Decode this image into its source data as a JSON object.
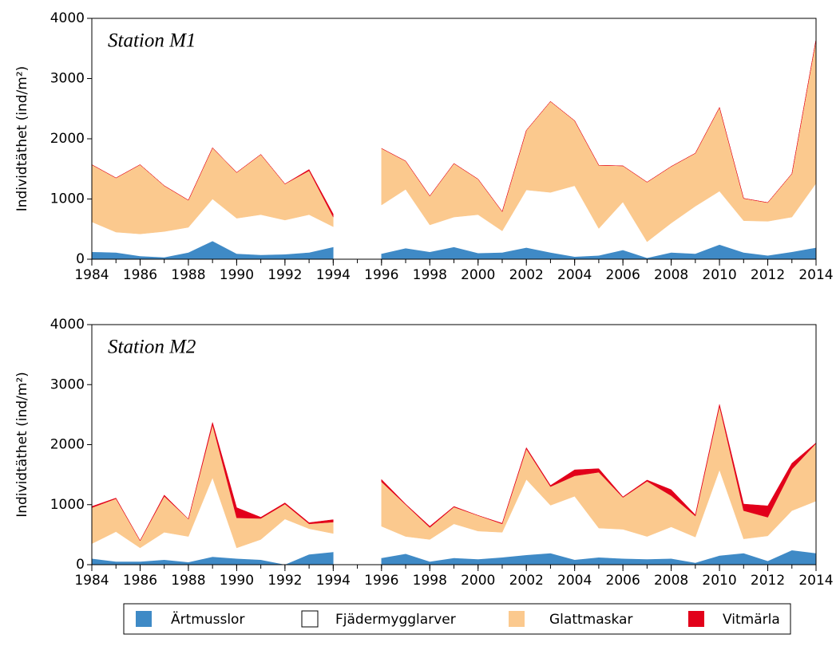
{
  "chart_data": [
    {
      "type": "area",
      "stacked": true,
      "title": "Station M1",
      "y_label": "Individtäthet (ind/m²)",
      "x": [
        1984,
        1985,
        1986,
        1987,
        1988,
        1989,
        1990,
        1991,
        1992,
        1993,
        1994,
        1995,
        1996,
        1997,
        1998,
        1999,
        2000,
        2001,
        2002,
        2003,
        2004,
        2005,
        2006,
        2007,
        2008,
        2009,
        2010,
        2011,
        2012,
        2013,
        2014
      ],
      "xlim": [
        1984,
        2014
      ],
      "xticks": [
        1984,
        1986,
        1988,
        1990,
        1992,
        1994,
        1996,
        1998,
        2000,
        2002,
        2004,
        2006,
        2008,
        2010,
        2012,
        2014
      ],
      "ylim": [
        0,
        4000
      ],
      "yticks": [
        0,
        1000,
        2000,
        3000,
        4000
      ],
      "series": [
        {
          "name": "Ärtmusslor",
          "color": "#3f8ac6",
          "values": [
            120,
            110,
            50,
            30,
            110,
            300,
            90,
            70,
            80,
            110,
            200,
            null,
            90,
            180,
            120,
            200,
            100,
            110,
            190,
            110,
            40,
            60,
            150,
            20,
            110,
            90,
            240,
            110,
            60,
            120,
            190
          ]
        },
        {
          "name": "Fjädermygglarver",
          "color": "#ffffff",
          "values": [
            500,
            340,
            370,
            430,
            420,
            700,
            590,
            670,
            570,
            630,
            340,
            null,
            810,
            980,
            450,
            500,
            640,
            360,
            960,
            1000,
            1180,
            450,
            800,
            270,
            490,
            790,
            890,
            530,
            570,
            580,
            1070
          ]
        },
        {
          "name": "Glattmaskar",
          "color": "#fbc98e",
          "values": [
            950,
            900,
            1150,
            760,
            450,
            850,
            760,
            1000,
            600,
            730,
            160,
            null,
            940,
            470,
            480,
            890,
            590,
            320,
            990,
            1510,
            1080,
            1050,
            600,
            990,
            940,
            880,
            1390,
            370,
            310,
            720,
            2390
          ]
        },
        {
          "name": "Vitmärla",
          "color": "#e2001a",
          "values": [
            0,
            0,
            0,
            0,
            0,
            0,
            0,
            0,
            0,
            20,
            50,
            null,
            0,
            0,
            0,
            0,
            0,
            0,
            0,
            0,
            0,
            0,
            0,
            0,
            0,
            0,
            0,
            0,
            0,
            0,
            0
          ]
        }
      ]
    },
    {
      "type": "area",
      "stacked": true,
      "title": "Station M2",
      "y_label": "Individtäthet (ind/m²)",
      "x": [
        1984,
        1985,
        1986,
        1987,
        1988,
        1989,
        1990,
        1991,
        1992,
        1993,
        1994,
        1995,
        1996,
        1997,
        1998,
        1999,
        2000,
        2001,
        2002,
        2003,
        2004,
        2005,
        2006,
        2007,
        2008,
        2009,
        2010,
        2011,
        2012,
        2013,
        2014
      ],
      "xlim": [
        1984,
        2014
      ],
      "xticks": [
        1984,
        1986,
        1988,
        1990,
        1992,
        1994,
        1996,
        1998,
        2000,
        2002,
        2004,
        2006,
        2008,
        2010,
        2012,
        2014
      ],
      "ylim": [
        0,
        4000
      ],
      "yticks": [
        0,
        1000,
        2000,
        3000,
        4000
      ],
      "series": [
        {
          "name": "Ärtmusslor",
          "color": "#3f8ac6",
          "values": [
            100,
            50,
            50,
            80,
            40,
            130,
            100,
            80,
            0,
            170,
            210,
            null,
            110,
            180,
            50,
            110,
            90,
            120,
            160,
            190,
            80,
            120,
            100,
            90,
            100,
            30,
            150,
            190,
            60,
            240,
            190
          ]
        },
        {
          "name": "Fjädermygglarver",
          "color": "#ffffff",
          "values": [
            250,
            500,
            230,
            460,
            430,
            1320,
            180,
            340,
            760,
            430,
            310,
            null,
            530,
            290,
            370,
            570,
            470,
            420,
            1260,
            800,
            1060,
            490,
            490,
            380,
            530,
            430,
            1430,
            240,
            420,
            660,
            870
          ]
        },
        {
          "name": "Glattmaskar",
          "color": "#fbc98e",
          "values": [
            600,
            550,
            120,
            600,
            290,
            880,
            500,
            350,
            250,
            80,
            190,
            null,
            740,
            530,
            200,
            280,
            260,
            140,
            510,
            310,
            340,
            930,
            530,
            920,
            520,
            350,
            1060,
            470,
            310,
            690,
            960
          ]
        },
        {
          "name": "Vitmärla",
          "color": "#e2001a",
          "values": [
            20,
            10,
            0,
            20,
            0,
            40,
            170,
            20,
            20,
            20,
            40,
            null,
            40,
            10,
            20,
            10,
            0,
            10,
            20,
            20,
            100,
            60,
            10,
            20,
            100,
            20,
            30,
            110,
            190,
            100,
            10
          ]
        }
      ]
    }
  ]
}
